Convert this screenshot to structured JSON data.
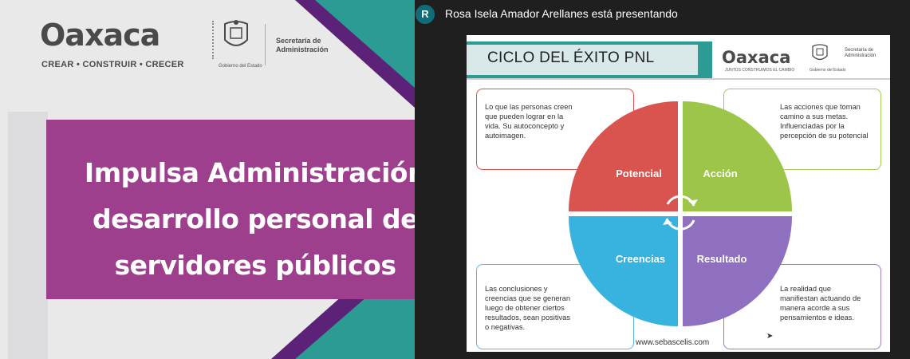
{
  "banner": {
    "logo_text": "Oaxaca",
    "logo_tagline": "CREAR • CONSTRUIR • CRECER",
    "seal_caption": "Gobierno del Estado",
    "secretaria": "Secretaría de Administración",
    "headline": [
      "Impulsa Administración",
      "desarrollo personal de",
      "servidores públicos"
    ]
  },
  "meeting": {
    "avatar_letter": "R",
    "presenter_text": "Rosa Isela Amador Arellanes está presentando"
  },
  "slide": {
    "title": "CICLO DEL ÉXITO PNL",
    "logo_text": "Oaxaca",
    "logo_tagline": "JUNTOS CONSTRUIMOS EL CAMBIO",
    "seal_caption": "Gobierno del Estado",
    "secretaria": "Secretaría de Administración",
    "quadrants": [
      "Potencial",
      "Acción",
      "Creencias",
      "Resultado"
    ],
    "box_top_left": [
      "Lo que las personas creen",
      "que pueden lograr en la",
      "vida. Su autoconcepto y",
      "autoimagen."
    ],
    "box_top_right": [
      "Las acciones que toman",
      "camino a sus metas.",
      "Influenciadas por la",
      "percepción de su potencial"
    ],
    "box_bottom_left": [
      "Las conclusiones y",
      "creencias que se generan",
      "luego de obtener ciertos",
      "resultados, sean positivas",
      "o negativas."
    ],
    "box_bottom_right": [
      "La realidad que",
      "manifiestan actuando de",
      "manera acorde a sus",
      "pensamientos e ideas."
    ],
    "credit": "www.sebascelis.com"
  },
  "colors": {
    "teal": "#2c9b93",
    "purple": "#9e3f8e",
    "dark_purple": "#5b2277",
    "red": "#d9534f",
    "green": "#9cc54a",
    "blue": "#38b3e0",
    "violet": "#8e6fc0"
  },
  "icons": [
    "oaxaca-seal-icon",
    "cycle-arrows-icon",
    "mouse-cursor-icon"
  ]
}
